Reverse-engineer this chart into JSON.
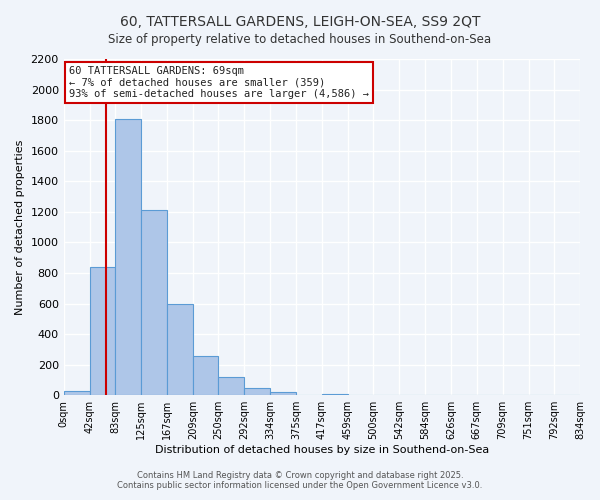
{
  "title_line1": "60, TATTERSALL GARDENS, LEIGH-ON-SEA, SS9 2QT",
  "title_line2": "Size of property relative to detached houses in Southend-on-Sea",
  "xlabel": "Distribution of detached houses by size in Southend-on-Sea",
  "ylabel": "Number of detached properties",
  "bar_edges": [
    0,
    42,
    83,
    125,
    167,
    209,
    250,
    292,
    334,
    375,
    417,
    459,
    500,
    542,
    584,
    626,
    667,
    709,
    751,
    792,
    834
  ],
  "bar_heights": [
    25,
    840,
    1810,
    1210,
    600,
    255,
    120,
    45,
    20,
    0,
    5,
    0,
    0,
    0,
    0,
    0,
    0,
    0,
    0,
    0
  ],
  "bar_color": "#aec6e8",
  "bar_edge_color": "#5b9bd5",
  "vline_x": 69,
  "vline_color": "#cc0000",
  "ylim": [
    0,
    2200
  ],
  "yticks": [
    0,
    200,
    400,
    600,
    800,
    1000,
    1200,
    1400,
    1600,
    1800,
    2000,
    2200
  ],
  "xtick_labels": [
    "0sqm",
    "42sqm",
    "83sqm",
    "125sqm",
    "167sqm",
    "209sqm",
    "250sqm",
    "292sqm",
    "334sqm",
    "375sqm",
    "417sqm",
    "459sqm",
    "500sqm",
    "542sqm",
    "584sqm",
    "626sqm",
    "667sqm",
    "709sqm",
    "751sqm",
    "792sqm",
    "834sqm"
  ],
  "annotation_title": "60 TATTERSALL GARDENS: 69sqm",
  "annotation_line1": "← 7% of detached houses are smaller (359)",
  "annotation_line2": "93% of semi-detached houses are larger (4,586) →",
  "annotation_box_color": "#ffffff",
  "annotation_box_edge_color": "#cc0000",
  "footer_line1": "Contains HM Land Registry data © Crown copyright and database right 2025.",
  "footer_line2": "Contains public sector information licensed under the Open Government Licence v3.0.",
  "bg_color": "#f0f4fa",
  "plot_bg_color": "#f0f4fa",
  "grid_color": "#ffffff"
}
